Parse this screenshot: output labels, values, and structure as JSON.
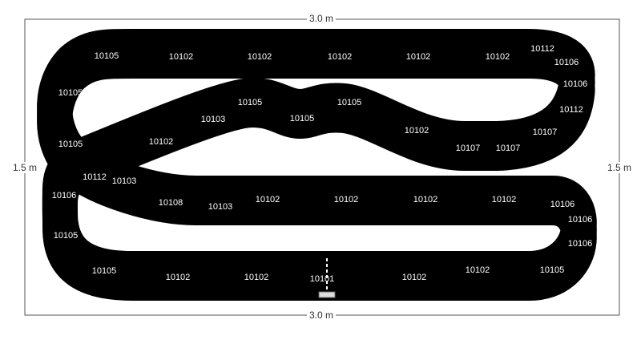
{
  "dimensions": {
    "top": "3.0 m",
    "bottom": "3.0 m",
    "left": "1.5 m",
    "right": "1.5 m"
  },
  "pieces": [
    "10105",
    "10102",
    "10102",
    "10102",
    "10102",
    "10102",
    "10112",
    "10106",
    "10106",
    "10112",
    "10107",
    "10107",
    "10107",
    "10102",
    "10105",
    "10105",
    "10105",
    "10103",
    "10102",
    "10105",
    "10105",
    "10112",
    "10103",
    "10108",
    "10103",
    "10102",
    "10102",
    "10102",
    "10102",
    "10106",
    "10106",
    "10106",
    "10105",
    "10102",
    "10102",
    "10101",
    "10102",
    "10102",
    "10105",
    "10105",
    "10106"
  ]
}
